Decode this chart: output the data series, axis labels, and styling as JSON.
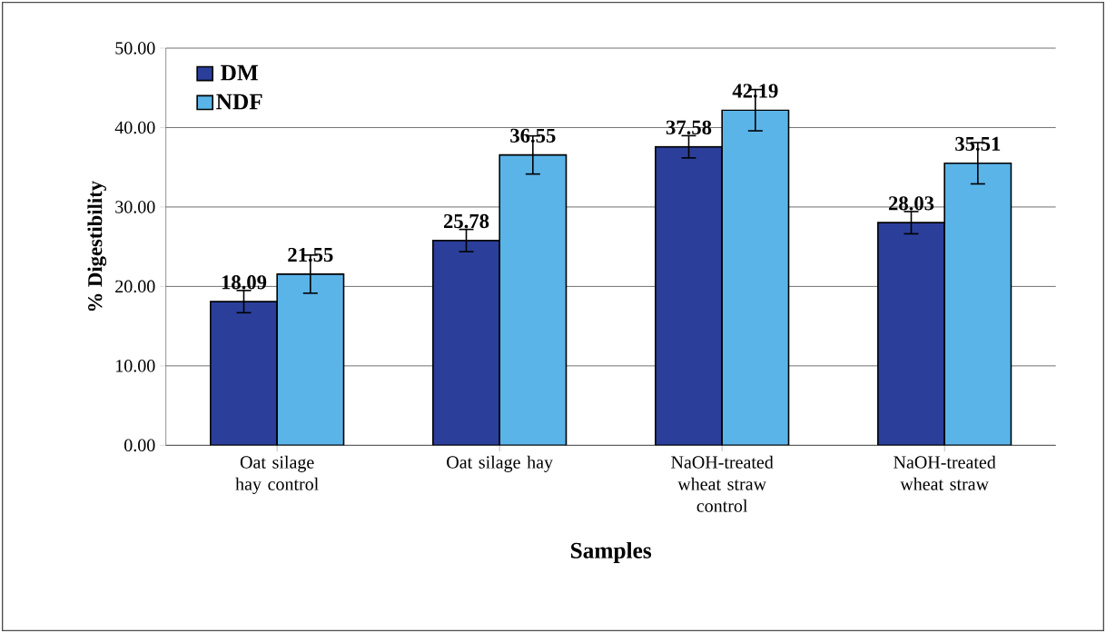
{
  "chart_data": {
    "type": "bar",
    "xlabel": "Samples",
    "ylabel": "% Digestibility",
    "categories": [
      "Oat silage hay control",
      "Oat silage hay",
      "NaOH-treated wheat straw control",
      "NaOH-treated wheat straw"
    ],
    "series": [
      {
        "name": "DM",
        "color": "#2b3f9a",
        "values": [
          18.09,
          25.78,
          37.58,
          28.03
        ],
        "errors": [
          1.4,
          1.4,
          1.4,
          1.4
        ]
      },
      {
        "name": "NDF",
        "color": "#5ab4e8",
        "values": [
          21.55,
          36.55,
          42.19,
          35.51
        ],
        "errors": [
          2.4,
          2.4,
          2.6,
          2.6
        ]
      }
    ],
    "ylim": [
      0,
      50
    ],
    "yticks": [
      {
        "value": 0,
        "label": "0.00"
      },
      {
        "value": 10,
        "label": "10.00"
      },
      {
        "value": 20,
        "label": "20.00"
      },
      {
        "value": 30,
        "label": "30.00"
      },
      {
        "value": 40,
        "label": "40.00"
      },
      {
        "value": 50,
        "label": "50.00"
      }
    ],
    "grid": "y",
    "legend": "top left",
    "data_labels": true
  }
}
